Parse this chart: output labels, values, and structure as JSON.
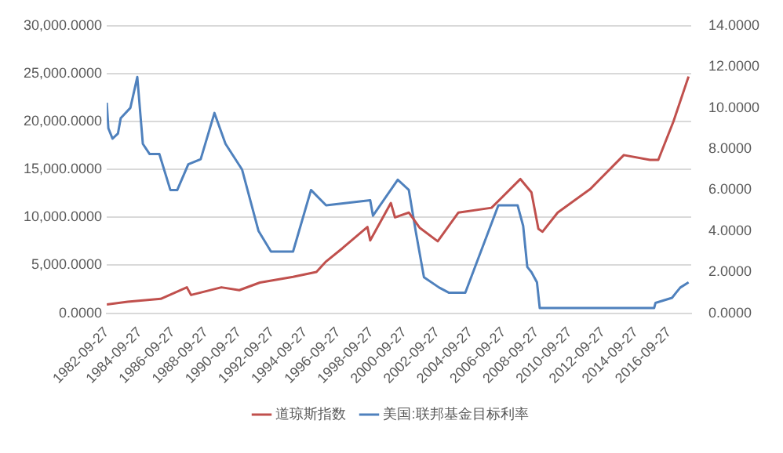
{
  "chart_data": {
    "type": "line",
    "series": [
      {
        "name": "道琼斯指数",
        "color": "#c0504d",
        "x": [
          "1982-09-27",
          "1984-01",
          "1986-01",
          "1987-08",
          "1987-11",
          "1989-09",
          "1990-10",
          "1992-01",
          "1994-01",
          "1995-06",
          "1996-01",
          "1997-01",
          "1998-07",
          "1998-09",
          "1999-12",
          "2000-03",
          "2001-01",
          "2001-09",
          "2002-10",
          "2004-01",
          "2006-01",
          "2007-10",
          "2008-06",
          "2008-11",
          "2009-02",
          "2010-01",
          "2012-01",
          "2014-01",
          "2015-08",
          "2016-02",
          "2017-01",
          "2017-12"
        ],
        "values": [
          900,
          1200,
          1500,
          2700,
          1900,
          2700,
          2400,
          3200,
          3800,
          4300,
          5400,
          6800,
          9000,
          7600,
          11500,
          10000,
          10500,
          8900,
          7500,
          10500,
          11000,
          14000,
          12600,
          8800,
          8500,
          10500,
          13000,
          16500,
          16000,
          16000,
          20000,
          24700
        ]
      },
      {
        "name": "美国:联邦基金目标利率",
        "color": "#4f81bd",
        "axis": "y2",
        "x": [
          "1982-09-27",
          "1982-11",
          "1983-02",
          "1983-06",
          "1983-08",
          "1984-03",
          "1984-08",
          "1984-12",
          "1985-05",
          "1985-12",
          "1986-08",
          "1987-01",
          "1987-09",
          "1988-06",
          "1989-04",
          "1989-12",
          "1990-12",
          "1991-12",
          "1992-09",
          "1994-01",
          "1995-02",
          "1996-01",
          "1998-09",
          "1998-11",
          "2000-05",
          "2001-01",
          "2001-06",
          "2001-12",
          "2002-11",
          "2003-06",
          "2004-06",
          "2005-01",
          "2006-06",
          "2007-08",
          "2007-12",
          "2008-03",
          "2008-06",
          "2008-10",
          "2008-12",
          "2015-11",
          "2015-12",
          "2016-12",
          "2017-03",
          "2017-06",
          "2017-12"
        ],
        "values": [
          10.25,
          9.0,
          8.5,
          8.75,
          9.5,
          10.0,
          11.5,
          8.25,
          7.75,
          7.75,
          6.0,
          6.0,
          7.25,
          7.5,
          9.75,
          8.25,
          7.0,
          4.0,
          3.0,
          3.0,
          6.0,
          5.25,
          5.5,
          4.75,
          6.5,
          6.0,
          4.0,
          1.75,
          1.25,
          1.0,
          1.0,
          2.25,
          5.25,
          5.25,
          4.25,
          2.25,
          2.0,
          1.5,
          0.25,
          0.25,
          0.5,
          0.75,
          1.0,
          1.25,
          1.5
        ]
      }
    ],
    "xlim": [
      "1982-09-27",
      "2018-01-27"
    ],
    "xticks": [
      "1982-09-27",
      "1984-09-27",
      "1986-09-27",
      "1988-09-27",
      "1990-09-27",
      "1992-09-27",
      "1994-09-27",
      "1996-09-27",
      "1998-09-27",
      "2000-09-27",
      "2002-09-27",
      "2004-09-27",
      "2006-09-27",
      "2008-09-27",
      "2010-09-27",
      "2012-09-27",
      "2014-09-27",
      "2016-09-27"
    ],
    "ylim": [
      0,
      30000
    ],
    "yticks": [
      {
        "value": 0,
        "label": "0.0000"
      },
      {
        "value": 5000,
        "label": "5,000.0000"
      },
      {
        "value": 10000,
        "label": "10,000.0000"
      },
      {
        "value": 15000,
        "label": "15,000.0000"
      },
      {
        "value": 20000,
        "label": "20,000.0000"
      },
      {
        "value": 25000,
        "label": "25,000.0000"
      },
      {
        "value": 30000,
        "label": "30,000.0000"
      }
    ],
    "y2lim": [
      0,
      14
    ],
    "y2ticks": [
      {
        "value": 0,
        "label": "0.0000"
      },
      {
        "value": 2,
        "label": "2.0000"
      },
      {
        "value": 4,
        "label": "4.0000"
      },
      {
        "value": 6,
        "label": "6.0000"
      },
      {
        "value": 8,
        "label": "8.0000"
      },
      {
        "value": 10,
        "label": "10.0000"
      },
      {
        "value": 12,
        "label": "12.0000"
      },
      {
        "value": 14,
        "label": "14.0000"
      }
    ],
    "grid": "y",
    "legend": "bottom",
    "marker": "none",
    "line_style": "solid"
  }
}
